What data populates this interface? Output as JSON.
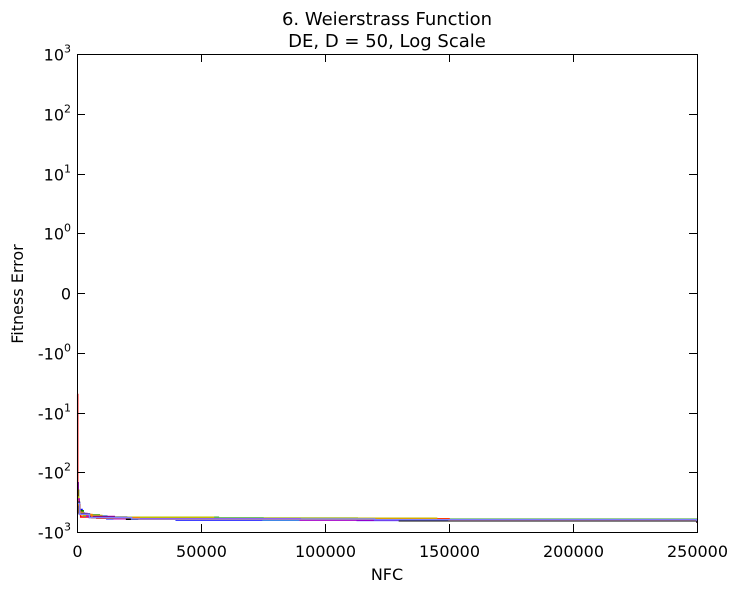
{
  "chart_data": {
    "type": "line",
    "title_line1": "6.   Weierstrass Function",
    "title_line2": "DE, D = 50, Log Scale",
    "xlabel": "NFC",
    "ylabel": "Fitness Error",
    "xlim": [
      0,
      250000
    ],
    "x_ticks": [
      0,
      50000,
      100000,
      150000,
      200000,
      250000
    ],
    "x_tick_labels": [
      "0",
      "50000",
      "100000",
      "150000",
      "200000",
      "250000"
    ],
    "y_scale": "symlog",
    "ylim": [
      -1000,
      1000
    ],
    "y_ticks": [
      {
        "value": 1000,
        "base": "10",
        "exp": "3"
      },
      {
        "value": 100,
        "base": "10",
        "exp": "2"
      },
      {
        "value": 10,
        "base": "10",
        "exp": "1"
      },
      {
        "value": 1,
        "base": "10",
        "exp": "0"
      },
      {
        "value": 0,
        "base": "0",
        "exp": ""
      },
      {
        "value": -1,
        "base": "-10",
        "exp": "0"
      },
      {
        "value": -10,
        "base": "-10",
        "exp": "1"
      },
      {
        "value": -100,
        "base": "-10",
        "exp": "2"
      },
      {
        "value": -1000,
        "base": "-10",
        "exp": "3"
      }
    ],
    "grid": false,
    "legend": "none",
    "series": [
      {
        "color": "#0000ff",
        "x": [
          0,
          500,
          2000,
          5000,
          12000,
          40000,
          113000,
          250000
        ],
        "y": [
          -150,
          -420,
          -500,
          -560,
          -600,
          -630,
          -640,
          -660
        ]
      },
      {
        "color": "#008000",
        "x": [
          0,
          600,
          2500,
          9000,
          57000,
          113000,
          250000
        ],
        "y": [
          -200,
          -440,
          -520,
          -570,
          -585,
          -610,
          -620
        ]
      },
      {
        "color": "#ff0000",
        "x": [
          0,
          300,
          1500,
          8000,
          30000,
          150000,
          250000
        ],
        "y": [
          -5,
          -460,
          -560,
          -590,
          -600,
          -640,
          -700
        ]
      },
      {
        "color": "#00bfbf",
        "x": [
          0,
          800,
          3000,
          12000,
          75000,
          250000
        ],
        "y": [
          -300,
          -480,
          -540,
          -580,
          -620,
          -650
        ]
      },
      {
        "color": "#bfbf00",
        "x": [
          0,
          700,
          2500,
          10000,
          55000,
          145000,
          250000
        ],
        "y": [
          -260,
          -470,
          -530,
          -565,
          -590,
          -620,
          -640
        ]
      },
      {
        "color": "#bf00bf",
        "x": [
          0,
          900,
          4000,
          15000,
          90000,
          250000
        ],
        "y": [
          -280,
          -490,
          -550,
          -600,
          -630,
          -680
        ]
      },
      {
        "color": "#000000",
        "x": [
          0,
          1000,
          5000,
          20000,
          130000,
          250000
        ],
        "y": [
          -320,
          -500,
          -570,
          -610,
          -650,
          -700
        ]
      },
      {
        "color": "#ff8000",
        "x": [
          0,
          1200,
          6000,
          25000,
          150000,
          250000
        ],
        "y": [
          -350,
          -510,
          -580,
          -610,
          -630,
          -650
        ]
      },
      {
        "color": "#8080ff",
        "x": [
          0,
          1100,
          5000,
          22000,
          120000,
          250000
        ],
        "y": [
          -330,
          -505,
          -575,
          -605,
          -625,
          -660
        ]
      }
    ]
  }
}
